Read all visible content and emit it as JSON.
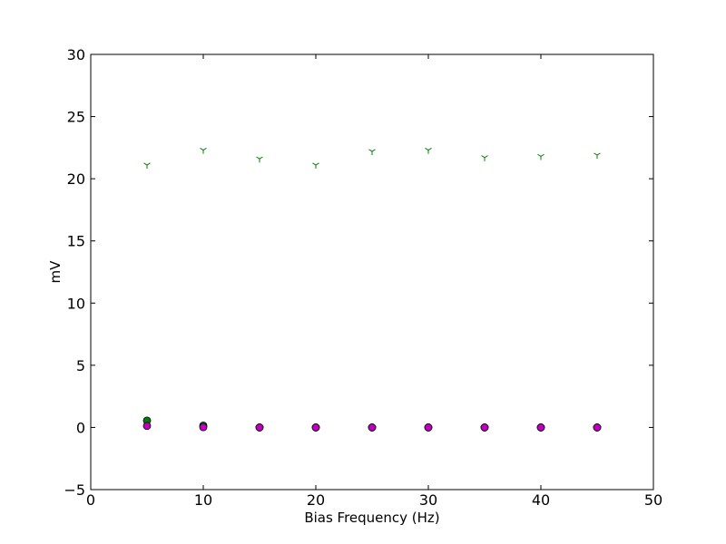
{
  "chart_data": {
    "type": "scatter",
    "title": "",
    "xlabel": "Bias Frequency (Hz)",
    "ylabel": "mV",
    "xlim": [
      0,
      50
    ],
    "ylim": [
      -5,
      30
    ],
    "xticks": [
      "0",
      "10",
      "20",
      "30",
      "40",
      "50"
    ],
    "yticks": [
      "−5",
      "0",
      "5",
      "10",
      "15",
      "20",
      "25",
      "30"
    ],
    "grid": false,
    "legend": "none",
    "series": [
      {
        "marker": "tri_down",
        "color": "#008000",
        "x": [
          5,
          10,
          15,
          20,
          25,
          30,
          35,
          40,
          45
        ],
        "y": [
          21.1,
          22.3,
          21.6,
          21.1,
          22.2,
          22.3,
          21.7,
          21.8,
          21.9
        ]
      },
      {
        "marker": "circle",
        "color": "#008000",
        "x": [
          5,
          10,
          15,
          20,
          25,
          30,
          35,
          40,
          45
        ],
        "y": [
          0.55,
          0.15,
          0.0,
          0.0,
          0.0,
          0.0,
          0.0,
          0.0,
          0.0
        ]
      },
      {
        "marker": "circle",
        "color": "#bf00bf",
        "x": [
          5,
          10,
          15,
          20,
          25,
          30,
          35,
          40,
          45
        ],
        "y": [
          0.12,
          0.02,
          0.0,
          0.0,
          0.0,
          0.0,
          0.0,
          0.0,
          0.0
        ]
      }
    ]
  }
}
